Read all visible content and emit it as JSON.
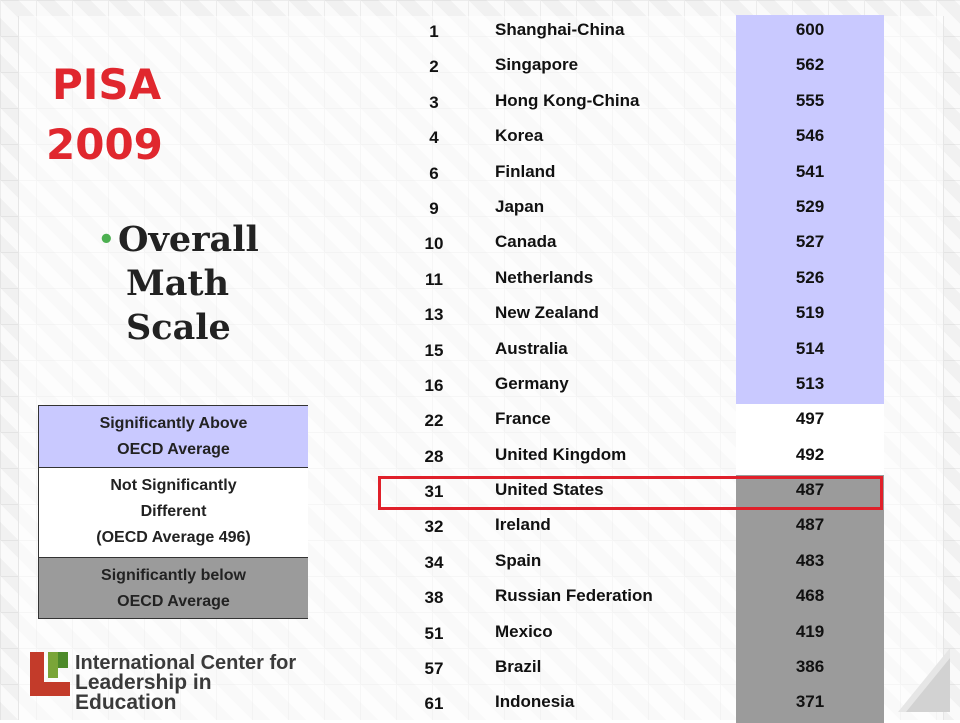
{
  "slide": {
    "title_line1": "PISA",
    "title_line2": "2009",
    "subtitle_lines": [
      "Overall",
      "Math",
      "Scale"
    ],
    "colors": {
      "title": "#e0272e",
      "above_average": "#c9c9ff",
      "not_significant": "#ffffff",
      "below_average": "#9b9b9b",
      "highlight_border": "#e0202a",
      "bullet": "#4caf50"
    }
  },
  "legend": {
    "above": [
      "Significantly Above",
      "OECD Average"
    ],
    "not_significant": [
      "Not Significantly",
      "Different",
      "(OECD Average 496)"
    ],
    "below": [
      "Significantly below",
      "OECD Average"
    ]
  },
  "table": {
    "rows": [
      {
        "rank": "1",
        "country": "Shanghai-China",
        "score": "600",
        "category": "above"
      },
      {
        "rank": "2",
        "country": "Singapore",
        "score": "562",
        "category": "above"
      },
      {
        "rank": "3",
        "country": "Hong Kong-China",
        "score": "555",
        "category": "above"
      },
      {
        "rank": "4",
        "country": "Korea",
        "score": "546",
        "category": "above"
      },
      {
        "rank": "6",
        "country": "Finland",
        "score": "541",
        "category": "above"
      },
      {
        "rank": "9",
        "country": "Japan",
        "score": "529",
        "category": "above"
      },
      {
        "rank": "10",
        "country": "Canada",
        "score": "527",
        "category": "above"
      },
      {
        "rank": "11",
        "country": "Netherlands",
        "score": "526",
        "category": "above"
      },
      {
        "rank": "13",
        "country": "New Zealand",
        "score": "519",
        "category": "above"
      },
      {
        "rank": "15",
        "country": "Australia",
        "score": "514",
        "category": "above"
      },
      {
        "rank": "16",
        "country": "Germany",
        "score": "513",
        "category": "above"
      },
      {
        "rank": "22",
        "country": "France",
        "score": "497",
        "category": "not"
      },
      {
        "rank": "28",
        "country": "United Kingdom",
        "score": "492",
        "category": "not"
      },
      {
        "rank": "31",
        "country": "United States",
        "score": "487",
        "category": "below",
        "highlighted": true
      },
      {
        "rank": "32",
        "country": "Ireland",
        "score": "487",
        "category": "below"
      },
      {
        "rank": "34",
        "country": "Spain",
        "score": "483",
        "category": "below"
      },
      {
        "rank": "38",
        "country": "Russian Federation",
        "score": "468",
        "category": "below"
      },
      {
        "rank": "51",
        "country": "Mexico",
        "score": "419",
        "category": "below"
      },
      {
        "rank": "57",
        "country": "Brazil",
        "score": "386",
        "category": "below"
      },
      {
        "rank": "61",
        "country": "Indonesia",
        "score": "371",
        "category": "below"
      }
    ]
  },
  "logo": {
    "line1": "International Center for",
    "line2": "Leadership in Education",
    "icon": "icle-logo-icon"
  }
}
